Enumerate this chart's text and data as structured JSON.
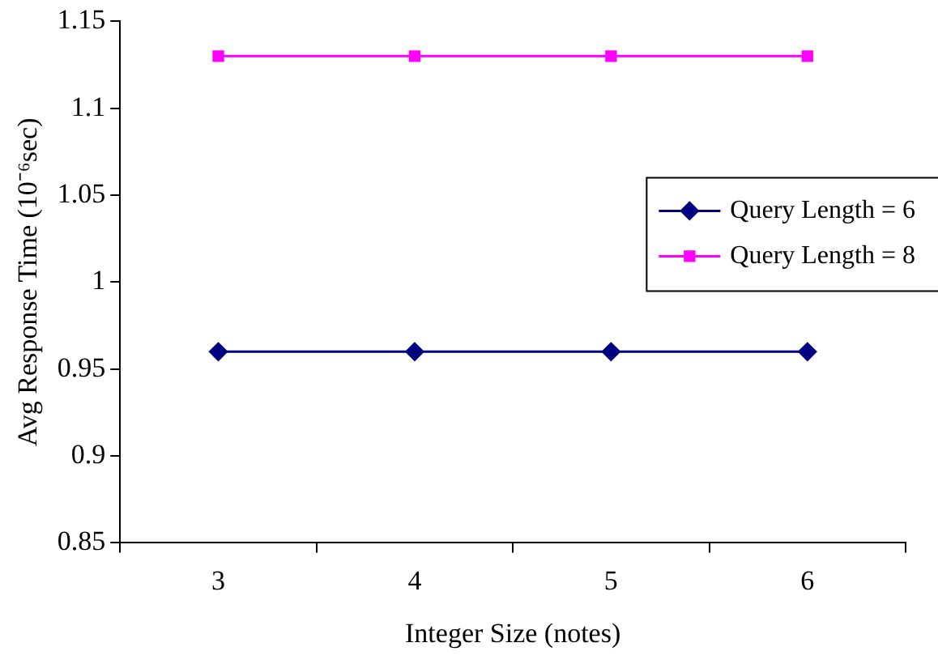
{
  "chart_data": {
    "type": "line",
    "xlabel": "Integer Size (notes)",
    "ylabel": "Avg Response Time (10⁻⁶sec)",
    "categories": [
      "3",
      "4",
      "5",
      "6"
    ],
    "series": [
      {
        "name": "Query Length = 6",
        "color": "#000080",
        "values": [
          0.96,
          0.96,
          0.96,
          0.96
        ],
        "marker": "diamond"
      },
      {
        "name": "Query Length = 8",
        "color": "#ff00ff",
        "values": [
          1.13,
          1.13,
          1.13,
          1.13
        ],
        "marker": "square"
      }
    ],
    "ylim": [
      0.85,
      1.15
    ],
    "yticks": [
      0.85,
      0.9,
      0.95,
      1,
      1.05,
      1.1,
      1.15
    ],
    "grid": false,
    "legend": "right",
    "line_style": "solid"
  }
}
